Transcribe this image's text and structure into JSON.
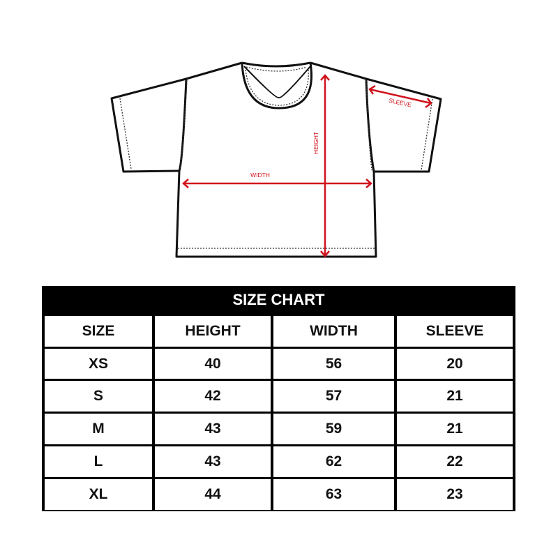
{
  "diagram": {
    "labels": {
      "width": "WIDTH",
      "height": "HEIGHT",
      "sleeve": "SLEEVE"
    },
    "arrow_color": "#d0121b"
  },
  "size_chart": {
    "title": "SIZE CHART",
    "headers": [
      "SIZE",
      "HEIGHT",
      "WIDTH",
      "SLEEVE"
    ],
    "rows": [
      [
        "XS",
        "40",
        "56",
        "20"
      ],
      [
        "S",
        "42",
        "57",
        "21"
      ],
      [
        "M",
        "43",
        "59",
        "21"
      ],
      [
        "L",
        "43",
        "62",
        "22"
      ],
      [
        "XL",
        "44",
        "63",
        "23"
      ]
    ]
  }
}
